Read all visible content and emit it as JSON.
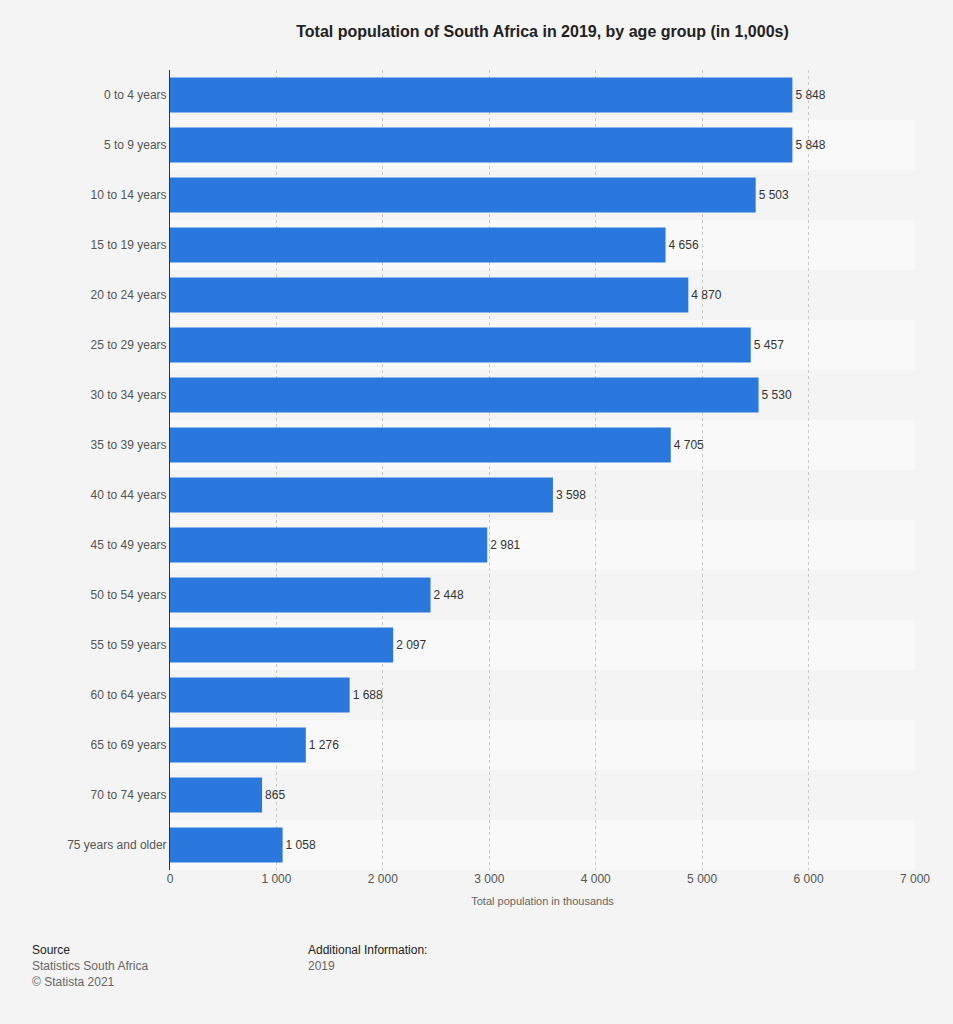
{
  "chart_data": {
    "type": "bar",
    "orientation": "horizontal",
    "title": "Total population of South Africa in 2019, by age group (in 1,000s)",
    "x_label": "Total population in thousands",
    "categories": [
      "0 to 4 years",
      "5 to 9 years",
      "10 to 14 years",
      "15 to 19 years",
      "20 to 24 years",
      "25 to 29 years",
      "30 to 34 years",
      "35 to 39 years",
      "40 to 44 years",
      "45 to 49 years",
      "50 to 54 years",
      "55 to 59 years",
      "60 to 64 years",
      "65 to 69 years",
      "70 to 74 years",
      "75 years and older"
    ],
    "values": [
      5848,
      5848,
      5503,
      4656,
      4870,
      5457,
      5530,
      4705,
      3598,
      2981,
      2448,
      2097,
      1688,
      1276,
      865,
      1058
    ],
    "value_labels": [
      "5 848",
      "5 848",
      "5 503",
      "4 656",
      "4 870",
      "5 457",
      "5 530",
      "4 705",
      "3 598",
      "2 981",
      "2 448",
      "2 097",
      "1 688",
      "1 276",
      "865",
      "1 058"
    ],
    "data_labels": true,
    "color": "#2a78de",
    "xlim": [
      0,
      7000
    ],
    "xticks": [
      0,
      {
        "value": 1000,
        "label": "1 000"
      },
      {
        "value": 2000,
        "label": "2 000"
      },
      {
        "value": 3000,
        "label": "3 000"
      },
      {
        "value": 4000,
        "label": "4 000"
      },
      {
        "value": 5000,
        "label": "5 000"
      },
      {
        "value": 6000,
        "label": "6 000"
      },
      {
        "value": 7000,
        "label": "7 000"
      }
    ],
    "grid": true,
    "annotations": [
      {
        "heading": "Source",
        "lines": [
          "Statistics South Africa",
          "© Statista 2021"
        ]
      },
      {
        "heading": "Additional Information:",
        "lines": [
          "2019"
        ]
      }
    ]
  }
}
